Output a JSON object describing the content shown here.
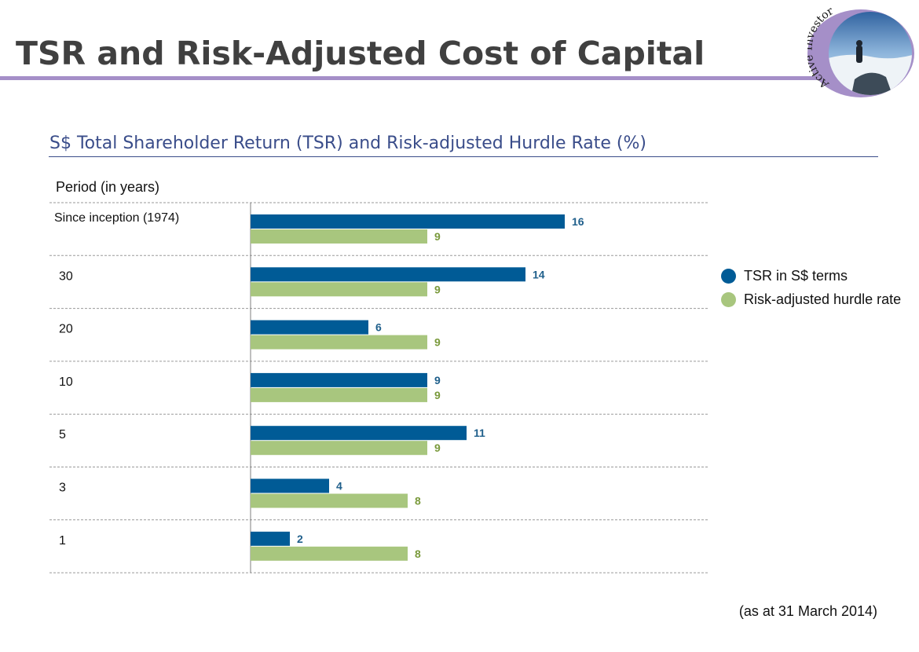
{
  "slide": {
    "title": "TSR and Risk-Adjusted Cost of Capital",
    "footnote": "(as at 31 March 2014)"
  },
  "logo": {
    "text": "Active Investor",
    "icon": "active-investor-logo"
  },
  "colors": {
    "tsr": "#005b96",
    "hurdle": "#a8c67e",
    "title_rule": "#a58fc8",
    "subtitle": "#3a4d8a"
  },
  "chart_data": {
    "type": "bar",
    "orientation": "horizontal",
    "title": "S$ Total Shareholder Return (TSR) and Risk-adjusted Hurdle Rate (%)",
    "category_header": "Period (in years)",
    "categories": [
      "Since inception (1974)",
      "30",
      "20",
      "10",
      "5",
      "3",
      "1"
    ],
    "series": [
      {
        "name": "TSR in S$ terms",
        "values": [
          16,
          14,
          6,
          9,
          11,
          4,
          2
        ]
      },
      {
        "name": "Risk-adjusted hurdle rate",
        "values": [
          9,
          9,
          9,
          9,
          9,
          8,
          8
        ]
      }
    ],
    "xlim": [
      0,
      16
    ],
    "grid": false,
    "row_separators": true,
    "data_labels": true,
    "legend": "right"
  }
}
